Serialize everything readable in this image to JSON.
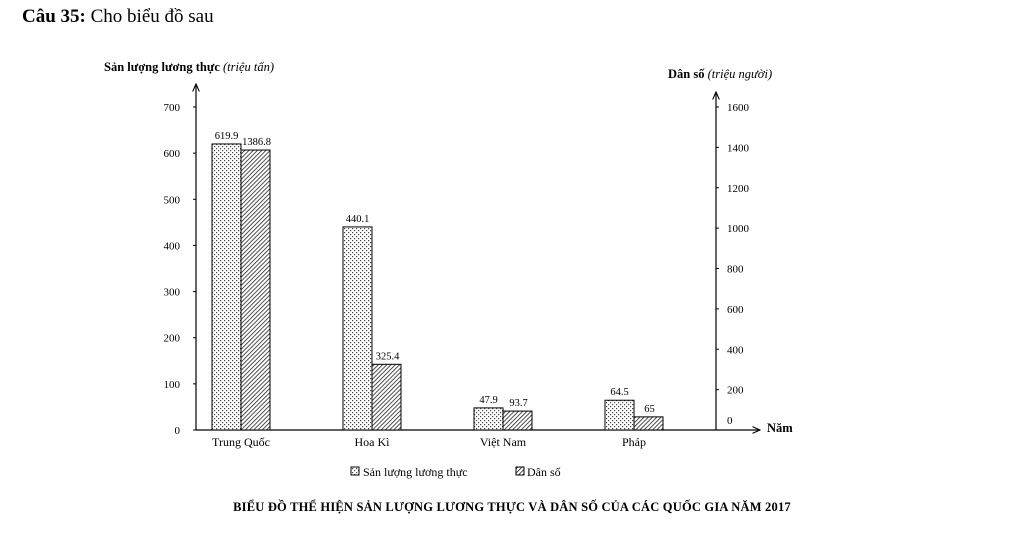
{
  "question": {
    "number": "Câu 35:",
    "text": "Cho biểu đồ sau"
  },
  "chart_data": {
    "type": "bar",
    "title": "BIỂU ĐỒ THỂ HIỆN SẢN LƯỢNG LƯƠNG THỰC VÀ DÂN SỐ CỦA CÁC QUỐC GIA NĂM 2017",
    "categories": [
      "Trung Quốc",
      "Hoa Kì",
      "Việt Nam",
      "Pháp"
    ],
    "x_axis_label": "Năm",
    "left_axis": {
      "label_main": "Sản lượng lương thực",
      "label_unit": "(triệu tấn)",
      "ylim": [
        0,
        700
      ],
      "ticks": [
        0,
        100,
        200,
        300,
        400,
        500,
        600,
        700
      ]
    },
    "right_axis": {
      "label_main": "Dân số",
      "label_unit": "(triệu người)",
      "ylim": [
        0,
        1600
      ],
      "ticks": [
        0,
        200,
        400,
        600,
        800,
        1000,
        1200,
        1400,
        1600
      ]
    },
    "series": [
      {
        "name": "Sản lượng lương thực",
        "axis": "left",
        "pattern": "dotted",
        "values": [
          619.9,
          440.1,
          47.9,
          64.5
        ],
        "labels": [
          "619.9",
          "440.1",
          "47.9",
          "64.5"
        ]
      },
      {
        "name": "Dân số",
        "axis": "right",
        "pattern": "hatched",
        "values": [
          1386.8,
          325.4,
          93.7,
          65
        ],
        "labels": [
          "1386.8",
          "325.4",
          "93.7",
          "65"
        ]
      }
    ],
    "legend_position": "bottom"
  }
}
